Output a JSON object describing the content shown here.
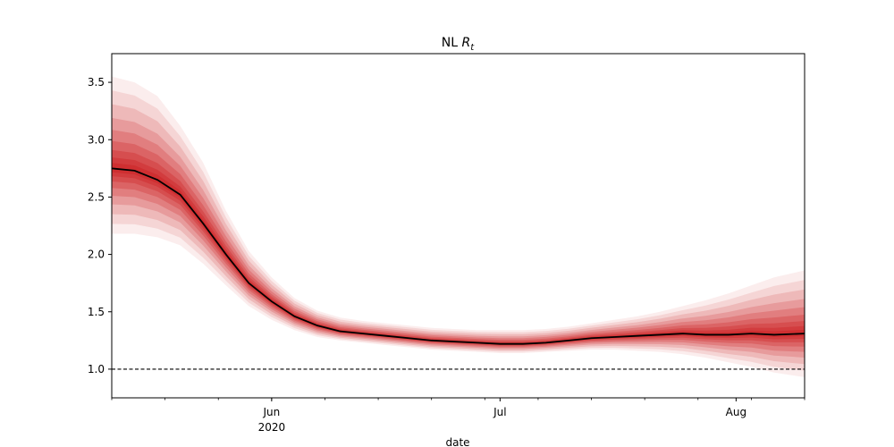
{
  "chart_data": {
    "type": "line",
    "title": "NL",
    "title_math_symbol": "R",
    "title_math_subscript": "t",
    "xlabel": "date",
    "ylabel": "",
    "x_range": [
      "2020-05-11",
      "2020-08-10"
    ],
    "ylim": [
      0.75,
      3.75
    ],
    "y_ticks": [
      {
        "value": 1.0,
        "label": "1.0"
      },
      {
        "value": 1.5,
        "label": "1.5"
      },
      {
        "value": 2.0,
        "label": "2.0"
      },
      {
        "value": 2.5,
        "label": "2.5"
      },
      {
        "value": 3.0,
        "label": "3.0"
      },
      {
        "value": 3.5,
        "label": "3.5"
      }
    ],
    "x_ticks": [
      {
        "date": "2020-06-01",
        "label": "Jun",
        "sublabel": "2020"
      },
      {
        "date": "2020-07-01",
        "label": "Jul",
        "sublabel": ""
      },
      {
        "date": "2020-08-01",
        "label": "Aug",
        "sublabel": ""
      }
    ],
    "reference_line": {
      "y": 1.0,
      "style": "dashed",
      "color": "#000000"
    },
    "series": [
      {
        "style": "median line with red percentile fan",
        "color": "#000000",
        "band_color": "#cb181d",
        "x": [
          "2020-05-11",
          "2020-05-14",
          "2020-05-17",
          "2020-05-20",
          "2020-05-23",
          "2020-05-26",
          "2020-05-29",
          "2020-06-01",
          "2020-06-04",
          "2020-06-07",
          "2020-06-10",
          "2020-06-13",
          "2020-06-16",
          "2020-06-19",
          "2020-06-22",
          "2020-06-25",
          "2020-06-28",
          "2020-07-01",
          "2020-07-04",
          "2020-07-07",
          "2020-07-10",
          "2020-07-13",
          "2020-07-16",
          "2020-07-19",
          "2020-07-22",
          "2020-07-25",
          "2020-07-28",
          "2020-07-31",
          "2020-08-03",
          "2020-08-06",
          "2020-08-10"
        ],
        "median": [
          2.75,
          2.73,
          2.65,
          2.52,
          2.27,
          2.0,
          1.75,
          1.59,
          1.46,
          1.38,
          1.33,
          1.31,
          1.29,
          1.27,
          1.25,
          1.24,
          1.23,
          1.22,
          1.22,
          1.23,
          1.25,
          1.27,
          1.28,
          1.29,
          1.3,
          1.31,
          1.3,
          1.3,
          1.31,
          1.3,
          1.31
        ],
        "lower_95": [
          2.18,
          2.18,
          2.15,
          2.08,
          1.92,
          1.73,
          1.55,
          1.43,
          1.34,
          1.28,
          1.25,
          1.23,
          1.21,
          1.19,
          1.17,
          1.16,
          1.15,
          1.14,
          1.14,
          1.15,
          1.16,
          1.17,
          1.17,
          1.16,
          1.15,
          1.13,
          1.1,
          1.06,
          1.02,
          0.97,
          0.93
        ],
        "upper_95": [
          3.55,
          3.5,
          3.38,
          3.12,
          2.8,
          2.38,
          2.03,
          1.8,
          1.62,
          1.51,
          1.45,
          1.42,
          1.4,
          1.38,
          1.36,
          1.35,
          1.34,
          1.34,
          1.34,
          1.35,
          1.37,
          1.4,
          1.43,
          1.46,
          1.5,
          1.55,
          1.6,
          1.66,
          1.73,
          1.8,
          1.86
        ]
      }
    ]
  }
}
